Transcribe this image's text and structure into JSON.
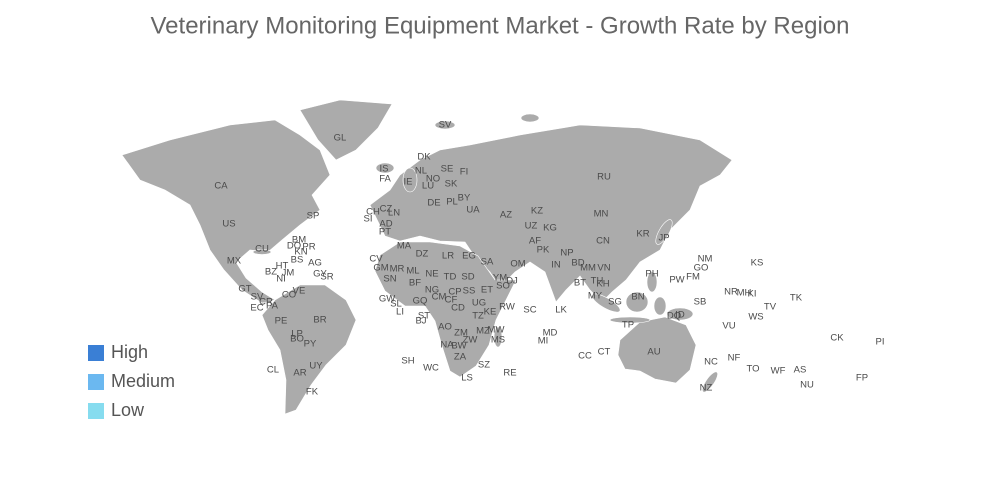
{
  "chart_data": {
    "type": "choropleth-map",
    "title": "Veterinary Monitoring Equipment Market - Growth Rate by Region",
    "legend": [
      {
        "name": "High",
        "color": "#3a7fd5"
      },
      {
        "name": "Medium",
        "color": "#6bb8f0"
      },
      {
        "name": "Low",
        "color": "#86dcef"
      }
    ],
    "regions": [
      "GL",
      "SV",
      "RU",
      "CA",
      "US",
      "MX",
      "CU",
      "DK",
      "NL",
      "NO",
      "SE",
      "FI",
      "IS",
      "FA",
      "LU",
      "SK",
      "IE",
      "CZ",
      "LN",
      "SI",
      "CH",
      "DE",
      "PL",
      "BY",
      "UA",
      "AD",
      "PT",
      "KZ",
      "AZ",
      "UZ",
      "KG",
      "MN",
      "CN",
      "KR",
      "JP",
      "AF",
      "PK",
      "NP",
      "IN",
      "BD",
      "MM",
      "VN",
      "TH",
      "KH",
      "BT",
      "LK",
      "PH",
      "PW",
      "FM",
      "NM",
      "GO",
      "KS",
      "MY",
      "SG",
      "BN",
      "ID",
      "TP",
      "DQ",
      "DZ",
      "MA",
      "EG",
      "LR",
      "SA",
      "YM",
      "OM",
      "NE",
      "TD",
      "SD",
      "ML",
      "MR",
      "SN",
      "GM",
      "CV",
      "GW",
      "SL",
      "LI",
      "BF",
      "NG",
      "CM",
      "CF",
      "SS",
      "ET",
      "SO",
      "DJ",
      "CP",
      "UG",
      "KE",
      "TZ",
      "RW",
      "CD",
      "GQ",
      "ST",
      "BJ",
      "AO",
      "ZM",
      "MZ",
      "MW",
      "MS",
      "NA",
      "BW",
      "ZW",
      "ZA",
      "LS",
      "SZ",
      "SH",
      "WC",
      "RE",
      "SC",
      "MD",
      "MI",
      "CC",
      "CT",
      "AU",
      "NC",
      "NF",
      "NZ",
      "TO",
      "WF",
      "AS",
      "NU",
      "FP",
      "CK",
      "PI",
      "TV",
      "TK",
      "WS",
      "VU",
      "SB",
      "NR",
      "MH",
      "KI",
      "GT",
      "SV",
      "CR",
      "EC",
      "PA",
      "CO",
      "VE",
      "PE",
      "BR",
      "BO",
      "PY",
      "LP",
      "CL",
      "AR",
      "UY",
      "FK",
      "BS",
      "BM",
      "DO",
      "KN",
      "PR",
      "AG",
      "SP",
      "BZ",
      "NI",
      "GY",
      "SR",
      "HT",
      "JM"
    ]
  }
}
